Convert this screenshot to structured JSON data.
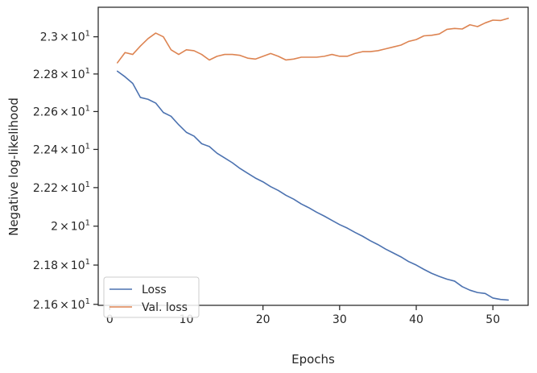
{
  "chart_data": {
    "type": "line",
    "xlabel": "Epochs",
    "ylabel": "Negative log-likelihood",
    "xlim": [
      -1.5,
      54.6
    ],
    "ylim": [
      21.595,
      23.16
    ],
    "y_scale": "log",
    "grid": false,
    "legend_position": "lower-left",
    "x_ticks": [
      {
        "value": 0,
        "label": "0"
      },
      {
        "value": 10,
        "label": "10"
      },
      {
        "value": 20,
        "label": "20"
      },
      {
        "value": 30,
        "label": "30"
      },
      {
        "value": 40,
        "label": "40"
      },
      {
        "value": 50,
        "label": "50"
      }
    ],
    "y_ticks": [
      {
        "value": 21.6,
        "mantissa": "2.16",
        "times": "×",
        "base": "10",
        "exp": "1"
      },
      {
        "value": 21.8,
        "mantissa": "2.18",
        "times": "×",
        "base": "10",
        "exp": "1"
      },
      {
        "value": 22.0,
        "mantissa": "2",
        "times": "×",
        "base": "10",
        "exp": "1"
      },
      {
        "value": 22.2,
        "mantissa": "2.22",
        "times": "×",
        "base": "10",
        "exp": "1"
      },
      {
        "value": 22.4,
        "mantissa": "2.24",
        "times": "×",
        "base": "10",
        "exp": "1"
      },
      {
        "value": 22.6,
        "mantissa": "2.26",
        "times": "×",
        "base": "10",
        "exp": "1"
      },
      {
        "value": 22.8,
        "mantissa": "2.28",
        "times": "×",
        "base": "10",
        "exp": "1"
      },
      {
        "value": 23.0,
        "mantissa": "2.3",
        "times": "×",
        "base": "10",
        "exp": "1"
      }
    ],
    "x": [
      1,
      2,
      3,
      4,
      5,
      6,
      7,
      8,
      9,
      10,
      11,
      12,
      13,
      14,
      15,
      16,
      17,
      18,
      19,
      20,
      21,
      22,
      23,
      24,
      25,
      26,
      27,
      28,
      29,
      30,
      31,
      32,
      33,
      34,
      35,
      36,
      37,
      38,
      39,
      40,
      41,
      42,
      43,
      44,
      45,
      46,
      47,
      48,
      49,
      50,
      51,
      52
    ],
    "series": [
      {
        "name": "Loss",
        "color": "#4c72b0",
        "values": [
          22.815,
          22.785,
          22.75,
          22.675,
          22.665,
          22.645,
          22.595,
          22.575,
          22.53,
          22.49,
          22.47,
          22.43,
          22.415,
          22.38,
          22.355,
          22.33,
          22.3,
          22.275,
          22.25,
          22.23,
          22.205,
          22.185,
          22.16,
          22.14,
          22.115,
          22.095,
          22.072,
          22.052,
          22.03,
          22.008,
          21.99,
          21.968,
          21.948,
          21.925,
          21.905,
          21.882,
          21.862,
          21.842,
          21.818,
          21.8,
          21.778,
          21.758,
          21.742,
          21.728,
          21.718,
          21.69,
          21.672,
          21.66,
          21.655,
          21.632,
          21.625,
          21.622
        ]
      },
      {
        "name": "Val. loss",
        "color": "#dd8452",
        "values": [
          22.86,
          22.915,
          22.905,
          22.95,
          22.99,
          23.02,
          23.0,
          22.93,
          22.905,
          22.93,
          22.925,
          22.905,
          22.875,
          22.895,
          22.905,
          22.905,
          22.9,
          22.885,
          22.88,
          22.895,
          22.91,
          22.895,
          22.875,
          22.88,
          22.89,
          22.89,
          22.89,
          22.895,
          22.905,
          22.895,
          22.895,
          22.91,
          22.92,
          22.92,
          22.925,
          22.935,
          22.945,
          22.955,
          22.975,
          22.985,
          23.005,
          23.008,
          23.015,
          23.04,
          23.045,
          23.042,
          23.065,
          23.055,
          23.075,
          23.09,
          23.088,
          23.1
        ]
      }
    ]
  }
}
